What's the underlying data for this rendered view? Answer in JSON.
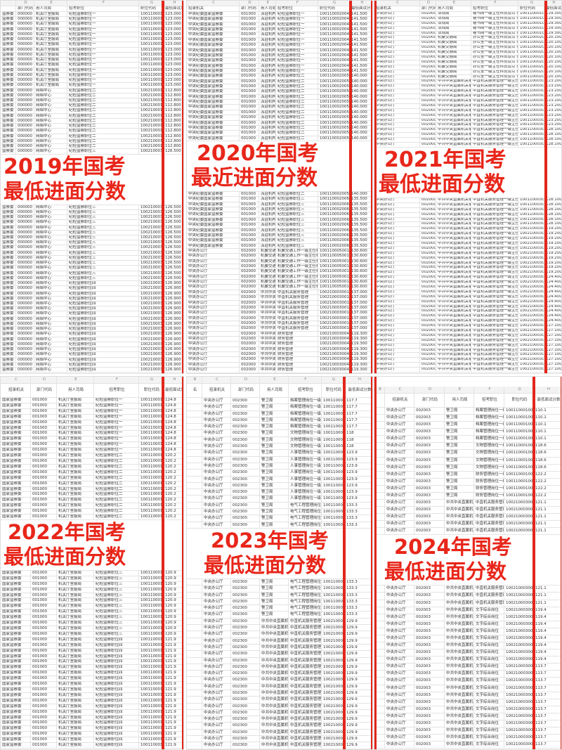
{
  "colors": {
    "accent_red": "#e2261b",
    "label_red": "#e8261a"
  },
  "panels": [
    {
      "id": "p1",
      "title_year": "2019年国考",
      "title_sub": "最低进面分数",
      "letters": [
        "",
        "D",
        "E",
        "F",
        "G",
        "H"
      ],
      "headers": [
        "",
        "部门代码",
        "用人司局",
        "招考职位",
        "职位代码",
        "最低面试分"
      ],
      "groups": [
        {
          "cells": [
            "监察委",
            "000000",
            "机关厅室服局",
            "纪检监察职位一",
            "100110001004",
            "123.000"
          ],
          "n": 15
        },
        {
          "cells": [
            "监察委",
            "000000",
            "网络中心",
            "纪检监察职位二",
            "100210001001",
            "112.800"
          ],
          "n": 12
        },
        {
          "cells": [
            "监察委",
            "000000",
            "网络中心",
            "纪检监察职位三",
            "100210003001",
            "126.500"
          ],
          "n": 16
        },
        {
          "cells": [
            "监察委",
            "000000",
            "网络中心",
            "纪检监察职位四",
            "100210003004",
            "126.900"
          ],
          "n": 18
        }
      ]
    },
    {
      "id": "p2",
      "title_year": "2020年国考",
      "title_sub": "最近进面分数",
      "letters": [
        "C",
        "D",
        "E",
        "F",
        "G",
        "H"
      ],
      "headers": [
        "招录机关",
        "部门代码",
        "用人司局",
        "招考职位",
        "职位代码",
        "最低面试分"
      ],
      "groups": [
        {
          "cells": [
            "中央纪委国家监察委",
            "001000",
            "派驻机构",
            "纪检监察职位一",
            "100110002004",
            "141.500"
          ],
          "n": 12
        },
        {
          "cells": [
            "中央纪委国家监察委",
            "001000",
            "派驻机构",
            "纪检监察职位二",
            "100110002005",
            "140.000"
          ],
          "n": 14
        },
        {
          "cells": [
            "中央纪委国家监察委",
            "001000",
            "派驻机构",
            "纪检监察职位三",
            "100110002006",
            "135.500"
          ],
          "n": 10
        },
        {
          "cells": [
            "中央办公厅",
            "002000",
            "机要交通局",
            "机要交通工作一级主任科员",
            "100110005001",
            "130.600"
          ],
          "n": 8
        },
        {
          "cells": [
            "中央办公厅",
            "002000",
            "中共中央直属机关事务管理局",
            "中直机关服务管理",
            "100210003001",
            "137.000"
          ],
          "n": 8
        },
        {
          "cells": [
            "中央办公厅",
            "002000",
            "中共中央财务领导小组办公室",
            "财务管理",
            "100210003004",
            "119.300"
          ],
          "n": 8
        }
      ]
    },
    {
      "id": "p3",
      "title_year": "2021年国考",
      "title_sub": "最低进面分数",
      "letters": [
        "C",
        "D",
        "E",
        "F",
        "G",
        "H"
      ],
      "headers": [
        "招录机关",
        "部门代码",
        "用人司局",
        "招考职位",
        "职位代码",
        "最低面试分"
      ],
      "groups": [
        {
          "cells": [
            "中央办公厅",
            "002000",
            "法规局",
            "秘书岗一级主任科员及以下",
            "100110001001",
            "129.300"
          ],
          "n": 5
        },
        {
          "cells": [
            "中央办公厅",
            "002000",
            "机要交通局",
            "办公室一级主任科员及以下",
            "100110002001",
            "120.100"
          ],
          "n": 9
        },
        {
          "cells": [
            "中央办公厅",
            "002000",
            "中共中央直属机关事务管理局",
            "中直机关服务管理一级主任科员",
            "100110003001",
            "123.200"
          ],
          "n": 10
        },
        {
          "cells": [
            "中央办公厅",
            "002000",
            "中共中央直属机关事务管理局",
            "中直机关服务管理一级主任科员",
            "100110003002",
            "128.100"
          ],
          "n": 10
        },
        {
          "cells": [
            "中央办公厅",
            "002000",
            "中共中央直属机关事务管理局",
            "中直机关服务管理一级主任科员",
            "100210003004",
            "119.200"
          ],
          "n": 10
        },
        {
          "cells": [
            "中央办公厅",
            "002000",
            "中共中央直属机关事务管理局",
            "中直机关服务管理一级主任科员",
            "100210003005",
            "124.400"
          ],
          "n": 10
        },
        {
          "cells": [
            "中央办公厅",
            "002000",
            "中共中央直属机关事务管理局",
            "中直机关服务管理一级主任科员",
            "100210003006",
            "127.100"
          ],
          "n": 10
        }
      ]
    },
    {
      "id": "p4",
      "title_year": "2022年国考",
      "title_sub": "最低进面分数",
      "letters": [
        "C",
        "D",
        "E",
        "F",
        "G",
        "H"
      ],
      "headers": [
        "招录机关",
        "部门代码",
        "用人司局",
        "招考职位",
        "职位代码",
        "最低面试分"
      ],
      "groups": [
        {
          "cells": [
            "国家监察委",
            "001000",
            "机关厅室服局",
            "纪检监察职位一",
            "100110001004",
            "124.8"
          ],
          "n": 10
        },
        {
          "cells": [
            "国家监察委",
            "001000",
            "机关厅室服局",
            "纪检监察职位二",
            "100110001005",
            "120.2"
          ],
          "n": 12
        },
        {
          "cells": [
            "国家监察委",
            "001000",
            "机关厅室服局",
            "纪检监察职位三",
            "100110001006",
            "120.9"
          ],
          "n": 12
        },
        {
          "cells": [
            "国家监察委",
            "001000",
            "机关厅室服局",
            "纪检监察职位四",
            "100110001007",
            "121.9"
          ],
          "n": 20
        }
      ]
    },
    {
      "id": "p5",
      "title_year": "2023年国考",
      "title_sub": "最低进面分数",
      "letters": [
        "B",
        "C",
        "D",
        "E",
        "F",
        "G",
        "H"
      ],
      "headers": [
        "名",
        "招录机关",
        "部门代码",
        "用人司局",
        "招考职位",
        "职位代码",
        "最低面试分数"
      ],
      "groups": [
        {
          "cells": [
            "",
            "中央办公厅",
            "002300",
            "警卫局",
            "档案管理岗位一级主任科员及以",
            "100110001001",
            "117.7"
          ],
          "n": 5
        },
        {
          "cells": [
            "",
            "中央办公厅",
            "002300",
            "警卫局",
            "文物管理岗位一级主任科员及以",
            "100110001002",
            "118"
          ],
          "n": 3
        },
        {
          "cells": [
            "",
            "中央办公厅",
            "002300",
            "警卫局",
            "人事管理岗位一级主任科员及以",
            "100110001003",
            "123.9"
          ],
          "n": 8
        },
        {
          "cells": [
            "",
            "中央办公厅",
            "002300",
            "警卫局",
            "电气工程管理岗位一级主任科员",
            "100110001006",
            "133.3"
          ],
          "n": 10
        },
        {
          "cells": [
            "",
            "中央办公厅",
            "002300",
            "中共中央直属机关事务管理局",
            "中直机关服务管理工作",
            "100210003001",
            "129.9"
          ],
          "n": 20
        }
      ]
    },
    {
      "id": "p6",
      "title_year": "2024年国考",
      "title_sub": "最低进面分数",
      "letters": [
        "B",
        "C",
        "D",
        "E",
        "F",
        "G",
        "H"
      ],
      "headers": [
        "",
        "招录机关",
        "部门代码",
        "用人司局",
        "招考职位",
        "职位代码",
        "最低面试分数"
      ],
      "groups": [
        {
          "cells": [
            "",
            "中央办公厅",
            "002003",
            "警卫局",
            "档案管理岗位一级主任科员及以",
            "100110001001",
            "110.1"
          ],
          "n": 5
        },
        {
          "cells": [
            "",
            "中央办公厅",
            "002003",
            "警卫局",
            "文物管理岗位一级主任科员及以",
            "100110001002",
            "118.6"
          ],
          "n": 4
        },
        {
          "cells": [
            "",
            "中央办公厅",
            "002003",
            "警卫局",
            "财务管理岗位一级主任科员及以",
            "100110001003",
            "122.2"
          ],
          "n": 4
        },
        {
          "cells": [
            "",
            "中央办公厅",
            "002003",
            "中共中央直属机关事务管理局",
            "中直机关服务管理",
            "100210003001",
            "121.1"
          ],
          "n": 8
        },
        {
          "cells": [
            "",
            "中央办公厅",
            "002003",
            "中共中央直属机关事务管理局",
            "文字综合岗位",
            "100210003004",
            "119.4"
          ],
          "n": 8
        },
        {
          "cells": [
            "",
            "中央办公厅",
            "002003",
            "中共中央直属机关事务管理局",
            "文字综合岗位",
            "100210003005",
            "113.7"
          ],
          "n": 12
        }
      ]
    }
  ]
}
